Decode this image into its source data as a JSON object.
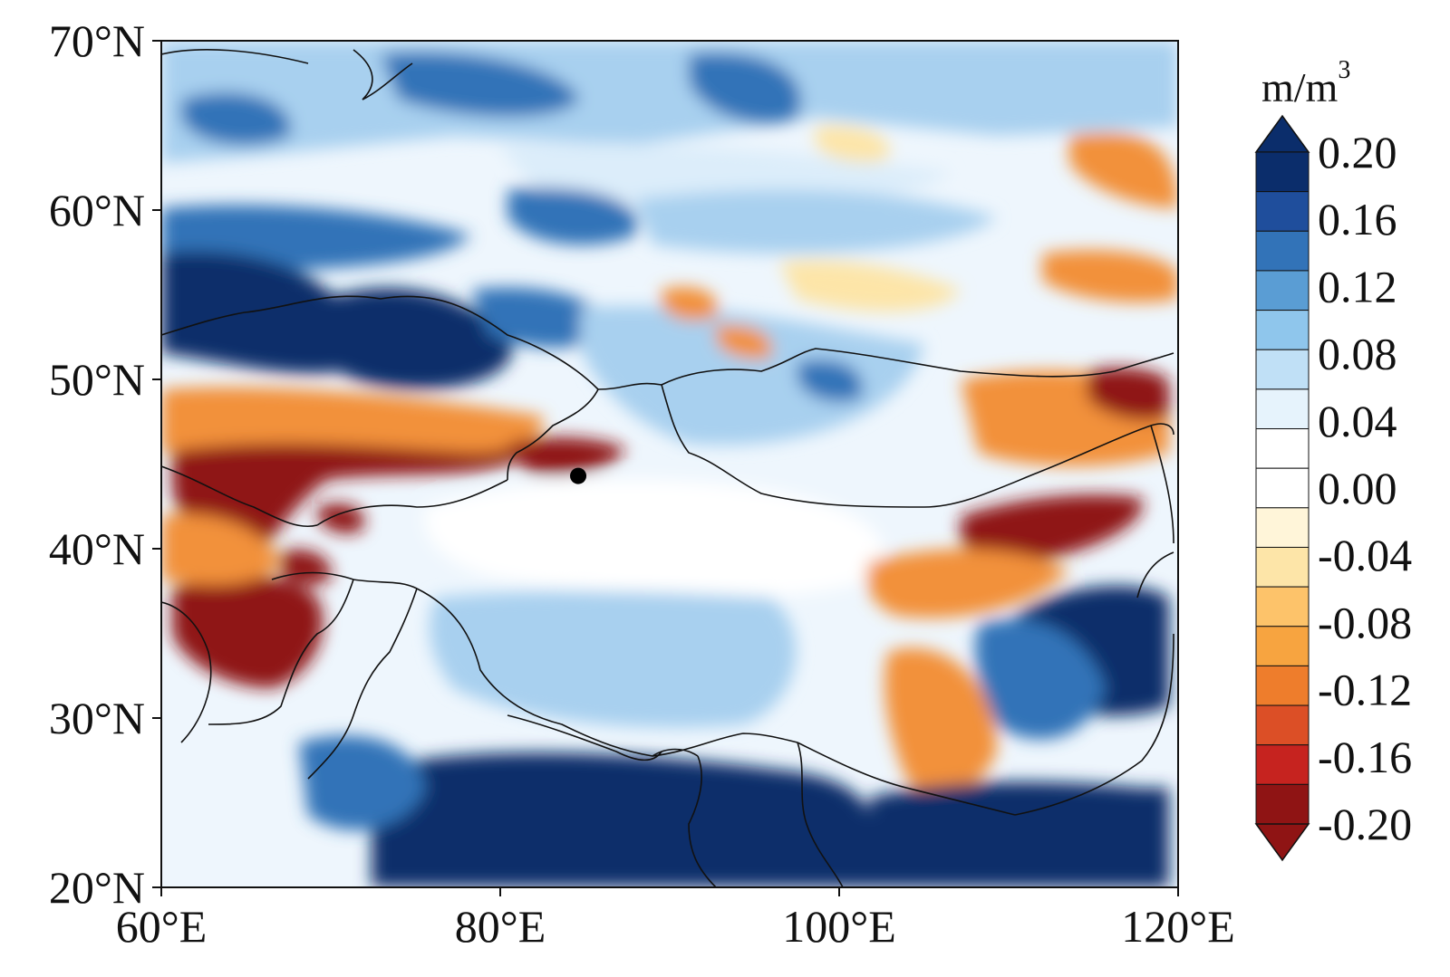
{
  "map": {
    "region": {
      "lon_min": 60,
      "lon_max": 120,
      "lat_min": 20,
      "lat_max": 70
    },
    "grid": false,
    "lon_ticks": [
      {
        "value": 60,
        "label": "60°E"
      },
      {
        "value": 80,
        "label": "80°E"
      },
      {
        "value": 100,
        "label": "100°E"
      },
      {
        "value": 120,
        "label": "120°E"
      }
    ],
    "lat_ticks": [
      {
        "value": 70,
        "label": "70°N"
      },
      {
        "value": 60,
        "label": "60°N"
      },
      {
        "value": 50,
        "label": "50°N"
      },
      {
        "value": 40,
        "label": "40°N"
      },
      {
        "value": 30,
        "label": "30°N"
      },
      {
        "value": 20,
        "label": "20°N"
      }
    ],
    "marker": {
      "lon": 84.6,
      "lat": 44.3,
      "color": "#000000"
    }
  },
  "colorbar": {
    "unit_base": "m/m",
    "unit_exp": "3",
    "extend": "both",
    "labels": [
      "0.20",
      "0.16",
      "0.12",
      "0.08",
      "0.04",
      "0.00",
      "-0.04",
      "-0.08",
      "-0.12",
      "-0.16",
      "-0.20"
    ],
    "colors": [
      "#0b2d6b",
      "#1f4e9c",
      "#3273b8",
      "#5a9dd4",
      "#8fc6ec",
      "#c0e0f6",
      "#e6f3fc",
      "#ffffff",
      "#ffffff",
      "#fff5d9",
      "#fde5a8",
      "#fdc36a",
      "#f7a440",
      "#ee7d2c",
      "#dc4f26",
      "#c6231f",
      "#8f1414"
    ],
    "top_triangle_color": "#0b2d6b",
    "bottom_triangle_color": "#8f1414"
  },
  "field_colors": {
    "strong_positive": "#0b2d6b",
    "positive": "#3273b8",
    "weak_positive": "#a8d0ef",
    "faint_positive": "#dcedfa",
    "zero": "#ffffff",
    "weak_negative": "#fde5a8",
    "negative": "#f2913a",
    "strong_negative": "#8f1414"
  }
}
